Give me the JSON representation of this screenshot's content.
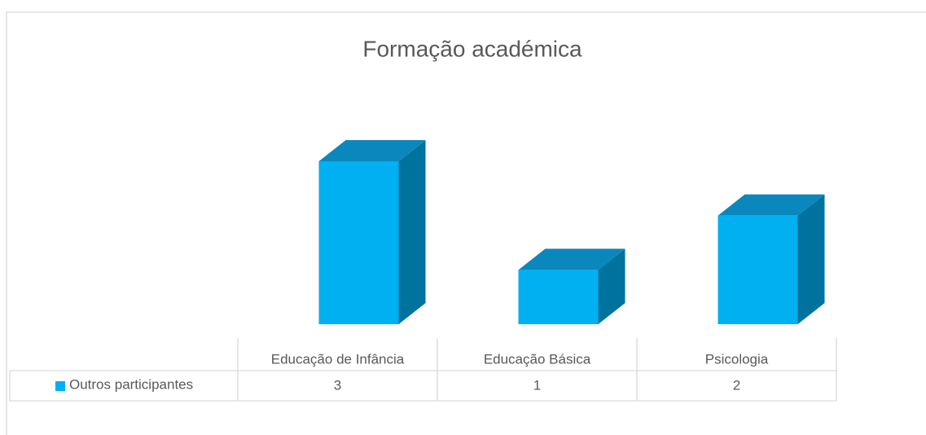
{
  "chart_data": {
    "type": "bar3d",
    "title": "Formação académica",
    "categories": [
      "Educação de Infância",
      "Educação Básica",
      "Psicologia"
    ],
    "series": [
      {
        "name": "Outros participantes",
        "color": "#00b0f0",
        "values": [
          3,
          1,
          2
        ]
      }
    ],
    "data_table": true
  }
}
